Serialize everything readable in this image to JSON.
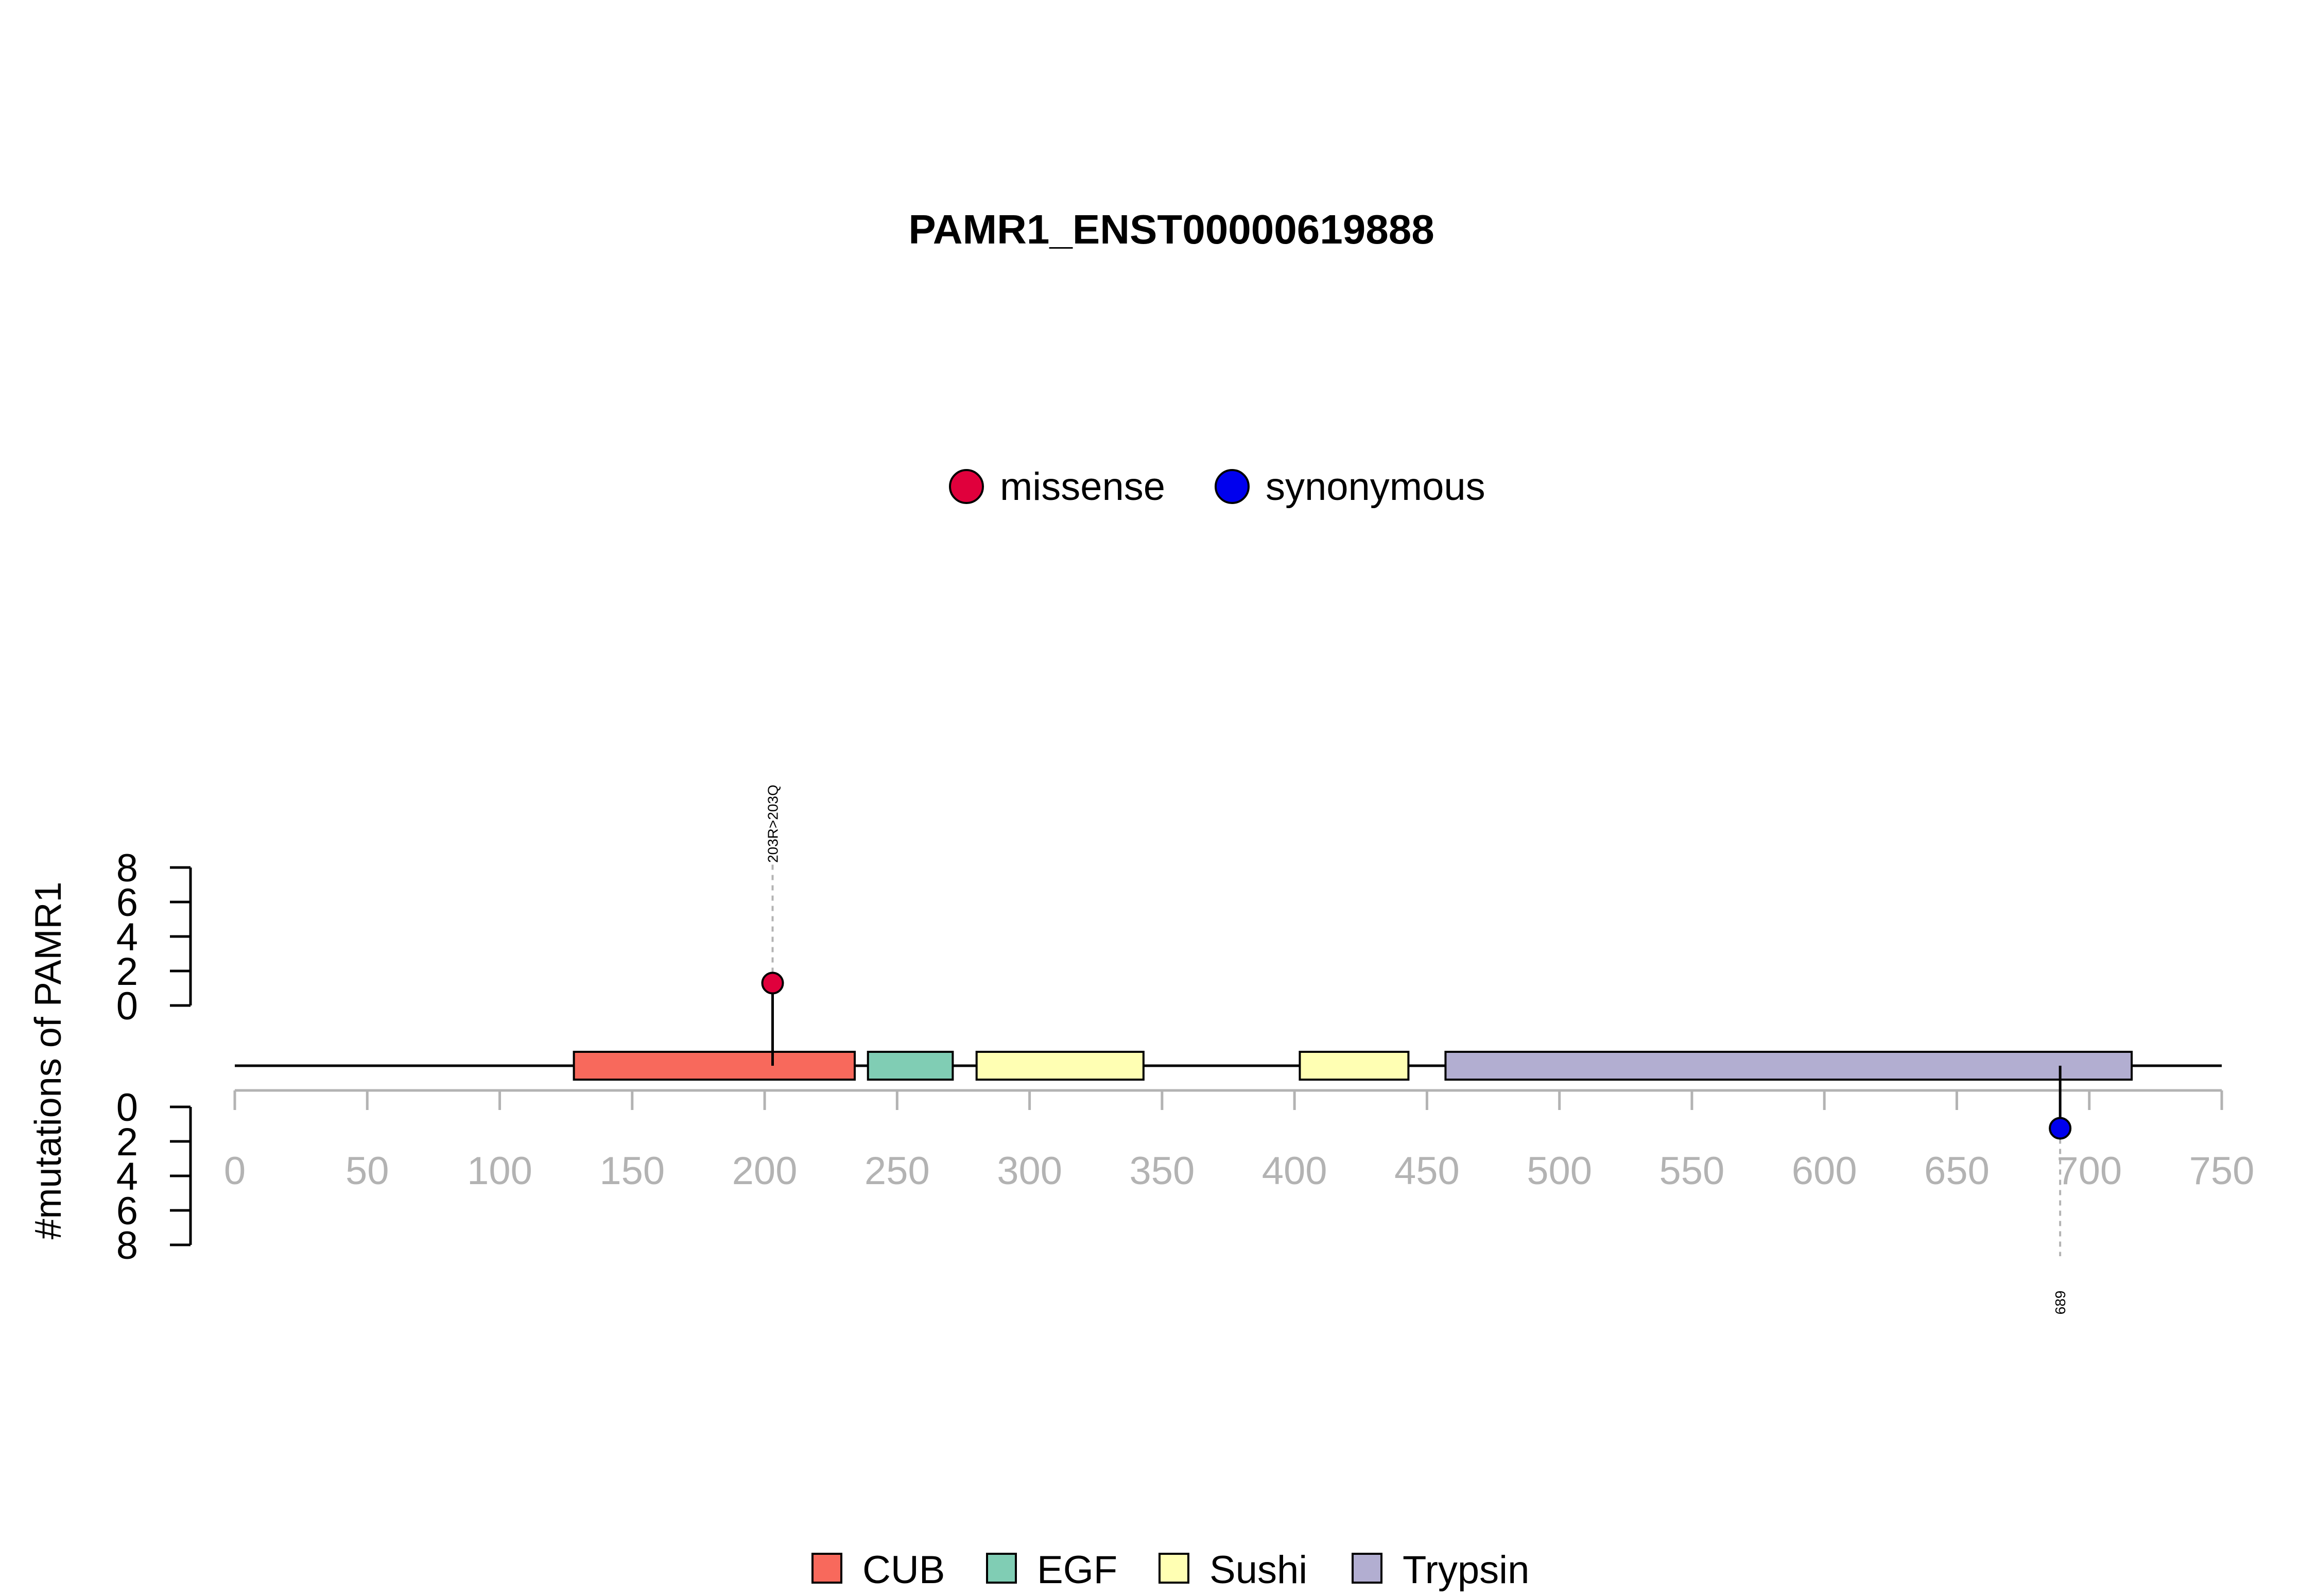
{
  "chart_data": {
    "type": "lollipop",
    "title": "PAMR1_ENST00000619888",
    "ylabel": "#mutations of PAMR1",
    "xlim": [
      0,
      750
    ],
    "x_ticks": [
      "0",
      "50",
      "100",
      "150",
      "200",
      "250",
      "300",
      "350",
      "400",
      "450",
      "500",
      "550",
      "600",
      "650",
      "700",
      "750"
    ],
    "y_ticks_top": [
      "0",
      "2",
      "4",
      "6",
      "8"
    ],
    "y_ticks_bottom": [
      "0",
      "2",
      "4",
      "6",
      "8"
    ],
    "ylim": [
      0,
      8
    ],
    "legend_top": [
      {
        "label": "missense",
        "color": "#e0003c"
      },
      {
        "label": "synonymous",
        "color": "#0000ee"
      }
    ],
    "legend_bottom": [
      {
        "label": "CUB",
        "color": "#f8695c"
      },
      {
        "label": "EGF",
        "color": "#80cdb4"
      },
      {
        "label": "Sushi",
        "color": "#ffffb3"
      },
      {
        "label": "Trypsin",
        "color": "#b2aed1"
      }
    ],
    "domains": [
      {
        "name": "CUB",
        "start": 128,
        "end": 234,
        "color": "#f8695c"
      },
      {
        "name": "EGF",
        "start": 239,
        "end": 271,
        "color": "#80cdb4"
      },
      {
        "name": "Sushi",
        "start": 280,
        "end": 343,
        "color": "#ffffb3"
      },
      {
        "name": "Sushi",
        "start": 402,
        "end": 443,
        "color": "#ffffb3"
      },
      {
        "name": "Trypsin",
        "start": 457,
        "end": 716,
        "color": "#b2aed1"
      }
    ],
    "mutations": [
      {
        "position": 203,
        "count": 1,
        "type": "missense",
        "label": "203R>203Q",
        "side": "top",
        "color": "#e0003c"
      },
      {
        "position": 689,
        "count": 1,
        "type": "synonymous",
        "label": "689",
        "side": "bottom",
        "color": "#0000ee"
      }
    ]
  }
}
